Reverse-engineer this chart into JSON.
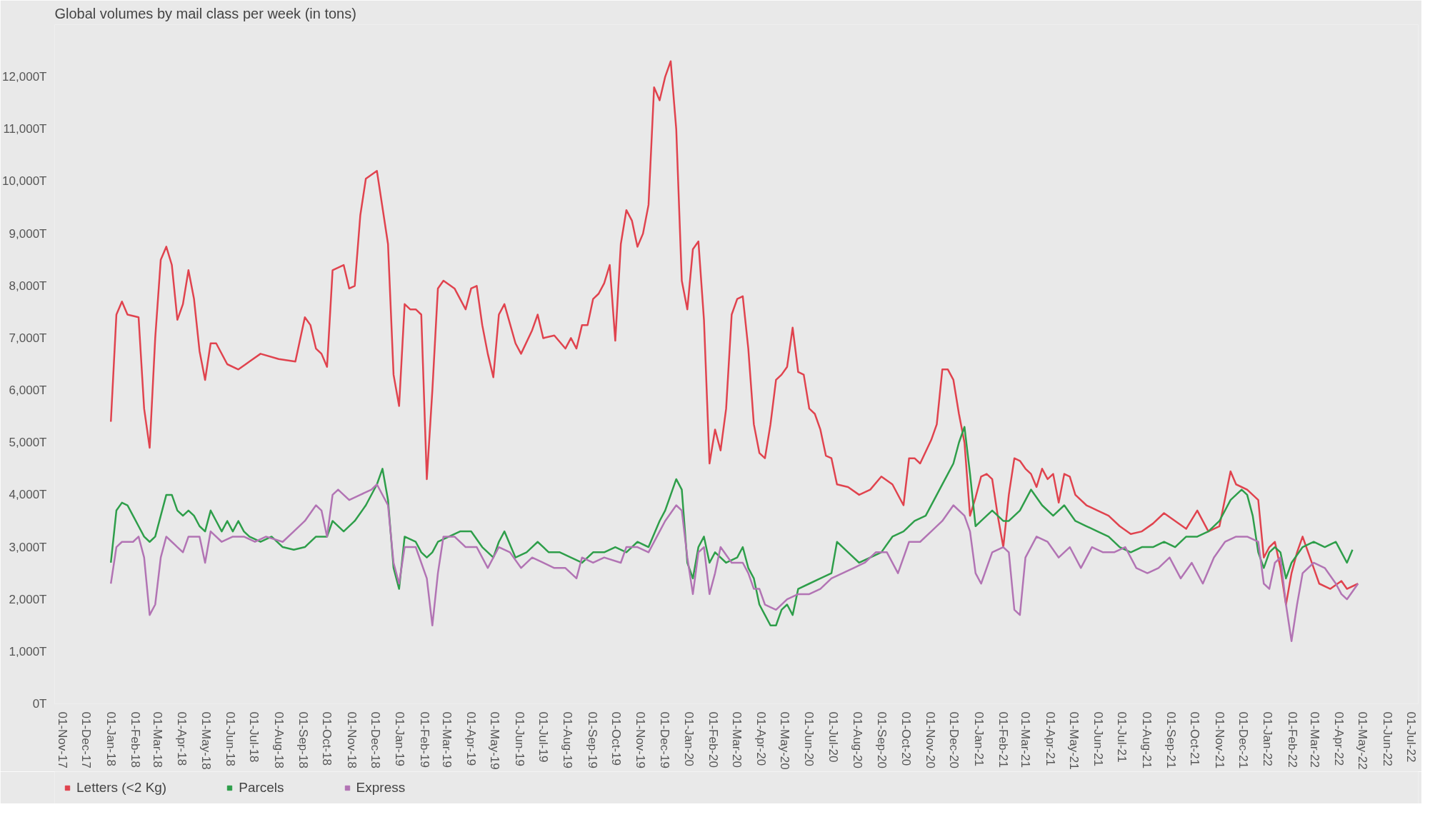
{
  "chart_data": {
    "type": "line",
    "title": "Global volumes by mail class per week (in tons)",
    "xlim": [
      "2017-10-22",
      "2022-07-10"
    ],
    "xticks": [
      {
        "value": "2017-11-01",
        "label": "01-Nov-17"
      },
      {
        "value": "2017-12-01",
        "label": "01-Dec-17"
      },
      {
        "value": "2018-01-01",
        "label": "01-Jan-18"
      },
      {
        "value": "2018-02-01",
        "label": "01-Feb-18"
      },
      {
        "value": "2018-03-01",
        "label": "01-Mar-18"
      },
      {
        "value": "2018-04-01",
        "label": "01-Apr-18"
      },
      {
        "value": "2018-05-01",
        "label": "01-May-18"
      },
      {
        "value": "2018-06-01",
        "label": "01-Jun-18"
      },
      {
        "value": "2018-07-01",
        "label": "01-Jul-18"
      },
      {
        "value": "2018-08-01",
        "label": "01-Aug-18"
      },
      {
        "value": "2018-09-01",
        "label": "01-Sep-18"
      },
      {
        "value": "2018-10-01",
        "label": "01-Oct-18"
      },
      {
        "value": "2018-11-01",
        "label": "01-Nov-18"
      },
      {
        "value": "2018-12-01",
        "label": "01-Dec-18"
      },
      {
        "value": "2019-01-01",
        "label": "01-Jan-19"
      },
      {
        "value": "2019-02-01",
        "label": "01-Feb-19"
      },
      {
        "value": "2019-03-01",
        "label": "01-Mar-19"
      },
      {
        "value": "2019-04-01",
        "label": "01-Apr-19"
      },
      {
        "value": "2019-05-01",
        "label": "01-May-19"
      },
      {
        "value": "2019-06-01",
        "label": "01-Jun-19"
      },
      {
        "value": "2019-07-01",
        "label": "01-Jul-19"
      },
      {
        "value": "2019-08-01",
        "label": "01-Aug-19"
      },
      {
        "value": "2019-09-01",
        "label": "01-Sep-19"
      },
      {
        "value": "2019-10-01",
        "label": "01-Oct-19"
      },
      {
        "value": "2019-11-01",
        "label": "01-Nov-19"
      },
      {
        "value": "2019-12-01",
        "label": "01-Dec-19"
      },
      {
        "value": "2020-01-01",
        "label": "01-Jan-20"
      },
      {
        "value": "2020-02-01",
        "label": "01-Feb-20"
      },
      {
        "value": "2020-03-01",
        "label": "01-Mar-20"
      },
      {
        "value": "2020-04-01",
        "label": "01-Apr-20"
      },
      {
        "value": "2020-05-01",
        "label": "01-May-20"
      },
      {
        "value": "2020-06-01",
        "label": "01-Jun-20"
      },
      {
        "value": "2020-07-01",
        "label": "01-Jul-20"
      },
      {
        "value": "2020-08-01",
        "label": "01-Aug-20"
      },
      {
        "value": "2020-09-01",
        "label": "01-Sep-20"
      },
      {
        "value": "2020-10-01",
        "label": "01-Oct-20"
      },
      {
        "value": "2020-11-01",
        "label": "01-Nov-20"
      },
      {
        "value": "2020-12-01",
        "label": "01-Dec-20"
      },
      {
        "value": "2021-01-01",
        "label": "01-Jan-21"
      },
      {
        "value": "2021-02-01",
        "label": "01-Feb-21"
      },
      {
        "value": "2021-03-01",
        "label": "01-Mar-21"
      },
      {
        "value": "2021-04-01",
        "label": "01-Apr-21"
      },
      {
        "value": "2021-05-01",
        "label": "01-May-21"
      },
      {
        "value": "2021-06-01",
        "label": "01-Jun-21"
      },
      {
        "value": "2021-07-01",
        "label": "01-Jul-21"
      },
      {
        "value": "2021-08-01",
        "label": "01-Aug-21"
      },
      {
        "value": "2021-09-01",
        "label": "01-Sep-21"
      },
      {
        "value": "2021-10-01",
        "label": "01-Oct-21"
      },
      {
        "value": "2021-11-01",
        "label": "01-Nov-21"
      },
      {
        "value": "2021-12-01",
        "label": "01-Dec-21"
      },
      {
        "value": "2022-01-01",
        "label": "01-Jan-22"
      },
      {
        "value": "2022-02-01",
        "label": "01-Feb-22"
      },
      {
        "value": "2022-03-01",
        "label": "01-Mar-22"
      },
      {
        "value": "2022-04-01",
        "label": "01-Apr-22"
      },
      {
        "value": "2022-05-01",
        "label": "01-May-22"
      },
      {
        "value": "2022-06-01",
        "label": "01-Jun-22"
      },
      {
        "value": "2022-07-01",
        "label": "01-Jul-22"
      }
    ],
    "ylim": [
      0,
      13000
    ],
    "yticks": [
      {
        "value": 0,
        "label": "0T"
      },
      {
        "value": 1000,
        "label": "1,000T"
      },
      {
        "value": 2000,
        "label": "2,000T"
      },
      {
        "value": 3000,
        "label": "3,000T"
      },
      {
        "value": 4000,
        "label": "4,000T"
      },
      {
        "value": 5000,
        "label": "5,000T"
      },
      {
        "value": 6000,
        "label": "6,000T"
      },
      {
        "value": 7000,
        "label": "7,000T"
      },
      {
        "value": 8000,
        "label": "8,000T"
      },
      {
        "value": 9000,
        "label": "9,000T"
      },
      {
        "value": 10000,
        "label": "10,000T"
      },
      {
        "value": 11000,
        "label": "11,000T"
      },
      {
        "value": 12000,
        "label": "12,000T"
      }
    ],
    "legend": "bottom",
    "marker": "none",
    "line_style": "solid",
    "series": [
      {
        "name": "Letters (<2 Kg)",
        "color": "#e0434e",
        "x": [
          "2018-01-01",
          "2018-01-08",
          "2018-01-15",
          "2018-01-22",
          "2018-02-05",
          "2018-02-12",
          "2018-02-19",
          "2018-02-26",
          "2018-03-05",
          "2018-03-12",
          "2018-03-19",
          "2018-03-26",
          "2018-04-02",
          "2018-04-09",
          "2018-04-16",
          "2018-04-23",
          "2018-04-30",
          "2018-05-07",
          "2018-05-14",
          "2018-05-28",
          "2018-06-11",
          "2018-06-25",
          "2018-07-09",
          "2018-08-01",
          "2018-08-22",
          "2018-09-03",
          "2018-09-10",
          "2018-09-17",
          "2018-09-24",
          "2018-10-01",
          "2018-10-08",
          "2018-10-22",
          "2018-10-29",
          "2018-11-05",
          "2018-11-12",
          "2018-11-19",
          "2018-12-03",
          "2018-12-17",
          "2018-12-24",
          "2018-12-31",
          "2019-01-07",
          "2019-01-14",
          "2019-01-21",
          "2019-01-28",
          "2019-02-04",
          "2019-02-11",
          "2019-02-18",
          "2019-02-25",
          "2019-03-11",
          "2019-03-25",
          "2019-04-01",
          "2019-04-08",
          "2019-04-15",
          "2019-04-22",
          "2019-04-29",
          "2019-05-06",
          "2019-05-13",
          "2019-05-27",
          "2019-06-03",
          "2019-06-17",
          "2019-06-24",
          "2019-07-01",
          "2019-07-15",
          "2019-07-29",
          "2019-08-05",
          "2019-08-12",
          "2019-08-19",
          "2019-08-26",
          "2019-09-02",
          "2019-09-09",
          "2019-09-16",
          "2019-09-23",
          "2019-09-30",
          "2019-10-07",
          "2019-10-14",
          "2019-10-21",
          "2019-10-28",
          "2019-11-04",
          "2019-11-11",
          "2019-11-18",
          "2019-11-25",
          "2019-12-02",
          "2019-12-09",
          "2019-12-16",
          "2019-12-23",
          "2019-12-30",
          "2020-01-06",
          "2020-01-13",
          "2020-01-20",
          "2020-01-27",
          "2020-02-03",
          "2020-02-10",
          "2020-02-17",
          "2020-02-24",
          "2020-03-02",
          "2020-03-09",
          "2020-03-16",
          "2020-03-23",
          "2020-03-30",
          "2020-04-06",
          "2020-04-13",
          "2020-04-20",
          "2020-04-27",
          "2020-05-04",
          "2020-05-11",
          "2020-05-18",
          "2020-05-25",
          "2020-06-01",
          "2020-06-08",
          "2020-06-15",
          "2020-06-22",
          "2020-06-29",
          "2020-07-06",
          "2020-07-20",
          "2020-08-03",
          "2020-08-17",
          "2020-08-31",
          "2020-09-14",
          "2020-09-28",
          "2020-10-05",
          "2020-10-12",
          "2020-10-19",
          "2020-11-02",
          "2020-11-09",
          "2020-11-16",
          "2020-11-23",
          "2020-11-30",
          "2020-12-07",
          "2020-12-14",
          "2020-12-21",
          "2020-12-28",
          "2021-01-04",
          "2021-01-11",
          "2021-01-18",
          "2021-01-25",
          "2021-02-01",
          "2021-02-08",
          "2021-02-15",
          "2021-02-22",
          "2021-03-01",
          "2021-03-08",
          "2021-03-15",
          "2021-03-22",
          "2021-03-29",
          "2021-04-05",
          "2021-04-12",
          "2021-04-19",
          "2021-04-26",
          "2021-05-03",
          "2021-05-17",
          "2021-05-31",
          "2021-06-14",
          "2021-06-28",
          "2021-07-12",
          "2021-07-26",
          "2021-08-09",
          "2021-08-23",
          "2021-09-06",
          "2021-09-20",
          "2021-10-04",
          "2021-10-18",
          "2021-11-01",
          "2021-11-15",
          "2021-11-22",
          "2021-12-06",
          "2021-12-13",
          "2021-12-20",
          "2021-12-27",
          "2022-01-03",
          "2022-01-10",
          "2022-01-17",
          "2022-01-24",
          "2022-01-31",
          "2022-02-07",
          "2022-02-14",
          "2022-02-28",
          "2022-03-07",
          "2022-03-21",
          "2022-04-04",
          "2022-04-11",
          "2022-04-25"
        ],
        "values": [
          5400,
          7450,
          7700,
          7450,
          7400,
          5650,
          4900,
          7000,
          8500,
          8750,
          8400,
          7350,
          7650,
          8300,
          7750,
          6750,
          6200,
          6900,
          6900,
          6500,
          6400,
          6550,
          6700,
          6600,
          6550,
          7400,
          7250,
          6800,
          6700,
          6450,
          8300,
          8400,
          7950,
          8000,
          9350,
          10050,
          10200,
          8800,
          6300,
          5700,
          7650,
          7550,
          7550,
          7450,
          4300,
          6000,
          7950,
          8100,
          7950,
          7550,
          7950,
          8000,
          7250,
          6700,
          6250,
          7450,
          7650,
          6900,
          6700,
          7150,
          7450,
          7000,
          7050,
          6800,
          7000,
          6800,
          7250,
          7250,
          7750,
          7850,
          8050,
          8400,
          6950,
          8800,
          9450,
          9250,
          8750,
          9000,
          9550,
          11800,
          11550,
          12000,
          12300,
          11000,
          8100,
          7550,
          8700,
          8850,
          7350,
          4600,
          5250,
          4850,
          5650,
          7450,
          7750,
          7800,
          6800,
          5350,
          4800,
          4700,
          5350,
          6200,
          6300,
          6450,
          7200,
          6350,
          6300,
          5650,
          5550,
          5250,
          4750,
          4700,
          4200,
          4150,
          4000,
          4100,
          4350,
          4200,
          3800,
          4700,
          4700,
          4600,
          5050,
          5350,
          6400,
          6400,
          6200,
          5550,
          5000,
          3600,
          3950,
          4350,
          4400,
          4300,
          3600,
          3000,
          4000,
          4700,
          4650,
          4500,
          4400,
          4150,
          4500,
          4300,
          4400,
          3850,
          4400,
          4350,
          4000,
          3800,
          3700,
          3600,
          3400,
          3250,
          3300,
          3450,
          3650,
          3500,
          3350,
          3700,
          3300,
          3400,
          4450,
          4200,
          4100,
          4000,
          3900,
          2800,
          3000,
          3100,
          2600,
          1900,
          2500,
          2900,
          3200,
          2600,
          2300,
          2200,
          2350,
          2200,
          2300
        ]
      },
      {
        "name": "Parcels",
        "color": "#2e9e4a",
        "x": [
          "2018-01-01",
          "2018-01-08",
          "2018-01-15",
          "2018-01-22",
          "2018-01-29",
          "2018-02-05",
          "2018-02-12",
          "2018-02-19",
          "2018-02-26",
          "2018-03-05",
          "2018-03-12",
          "2018-03-19",
          "2018-03-26",
          "2018-04-02",
          "2018-04-09",
          "2018-04-16",
          "2018-04-23",
          "2018-04-30",
          "2018-05-07",
          "2018-05-14",
          "2018-05-21",
          "2018-05-28",
          "2018-06-04",
          "2018-06-11",
          "2018-06-18",
          "2018-06-25",
          "2018-07-09",
          "2018-07-23",
          "2018-08-06",
          "2018-08-20",
          "2018-09-03",
          "2018-09-17",
          "2018-10-01",
          "2018-10-08",
          "2018-10-22",
          "2018-11-05",
          "2018-11-19",
          "2018-12-03",
          "2018-12-10",
          "2018-12-17",
          "2018-12-24",
          "2018-12-31",
          "2019-01-07",
          "2019-01-21",
          "2019-01-28",
          "2019-02-04",
          "2019-02-11",
          "2019-02-18",
          "2019-03-04",
          "2019-03-18",
          "2019-04-01",
          "2019-04-15",
          "2019-04-22",
          "2019-04-29",
          "2019-05-06",
          "2019-05-13",
          "2019-05-27",
          "2019-06-10",
          "2019-06-24",
          "2019-07-08",
          "2019-07-22",
          "2019-08-05",
          "2019-08-19",
          "2019-09-02",
          "2019-09-16",
          "2019-09-30",
          "2019-10-14",
          "2019-10-28",
          "2019-11-11",
          "2019-11-25",
          "2019-12-02",
          "2019-12-09",
          "2019-12-16",
          "2019-12-23",
          "2019-12-30",
          "2020-01-06",
          "2020-01-13",
          "2020-01-20",
          "2020-01-27",
          "2020-02-03",
          "2020-02-17",
          "2020-03-02",
          "2020-03-09",
          "2020-03-16",
          "2020-03-23",
          "2020-03-30",
          "2020-04-06",
          "2020-04-13",
          "2020-04-20",
          "2020-04-27",
          "2020-05-04",
          "2020-05-11",
          "2020-05-18",
          "2020-06-01",
          "2020-06-15",
          "2020-06-29",
          "2020-07-06",
          "2020-07-20",
          "2020-08-03",
          "2020-08-17",
          "2020-08-31",
          "2020-09-14",
          "2020-09-28",
          "2020-10-12",
          "2020-10-26",
          "2020-11-09",
          "2020-11-23",
          "2020-11-30",
          "2020-12-07",
          "2020-12-14",
          "2020-12-21",
          "2020-12-28",
          "2021-01-04",
          "2021-01-18",
          "2021-02-01",
          "2021-02-08",
          "2021-02-22",
          "2021-03-08",
          "2021-03-22",
          "2021-04-05",
          "2021-04-19",
          "2021-05-03",
          "2021-05-17",
          "2021-05-31",
          "2021-06-14",
          "2021-06-28",
          "2021-07-12",
          "2021-07-26",
          "2021-08-09",
          "2021-08-23",
          "2021-09-06",
          "2021-09-20",
          "2021-10-04",
          "2021-10-18",
          "2021-11-01",
          "2021-11-15",
          "2021-11-29",
          "2021-12-06",
          "2021-12-13",
          "2021-12-20",
          "2021-12-27",
          "2022-01-03",
          "2022-01-10",
          "2022-01-17",
          "2022-01-24",
          "2022-01-31",
          "2022-02-14",
          "2022-02-28",
          "2022-03-14",
          "2022-03-28",
          "2022-04-04",
          "2022-04-11",
          "2022-04-18"
        ],
        "values": [
          2700,
          3700,
          3850,
          3800,
          3600,
          3400,
          3200,
          3100,
          3200,
          3600,
          4000,
          4000,
          3700,
          3600,
          3700,
          3600,
          3400,
          3300,
          3700,
          3500,
          3300,
          3500,
          3300,
          3500,
          3300,
          3200,
          3100,
          3200,
          3000,
          2950,
          3000,
          3200,
          3200,
          3500,
          3300,
          3500,
          3800,
          4200,
          4500,
          3900,
          2600,
          2200,
          3200,
          3100,
          2900,
          2800,
          2900,
          3100,
          3200,
          3300,
          3300,
          3000,
          2900,
          2800,
          3100,
          3300,
          2800,
          2900,
          3100,
          2900,
          2900,
          2800,
          2700,
          2900,
          2900,
          3000,
          2900,
          3100,
          3000,
          3500,
          3700,
          4000,
          4300,
          4100,
          2700,
          2400,
          3000,
          3200,
          2700,
          2900,
          2700,
          2800,
          3000,
          2600,
          2400,
          1900,
          1700,
          1500,
          1500,
          1800,
          1900,
          1700,
          2200,
          2300,
          2400,
          2500,
          3100,
          2900,
          2700,
          2800,
          2900,
          3200,
          3300,
          3500,
          3600,
          4000,
          4400,
          4600,
          5000,
          5300,
          4400,
          3400,
          3500,
          3700,
          3500,
          3500,
          3700,
          4100,
          3800,
          3600,
          3800,
          3500,
          3400,
          3300,
          3200,
          3000,
          2900,
          3000,
          3000,
          3100,
          3000,
          3200,
          3200,
          3300,
          3500,
          3900,
          4100,
          4000,
          3600,
          2900,
          2600,
          2900,
          3000,
          2900,
          2400,
          2700,
          3000,
          3100,
          3000,
          3100,
          2900,
          2700,
          2950
        ]
      },
      {
        "name": "Express",
        "color": "#b274b4",
        "x": [
          "2018-01-01",
          "2018-01-08",
          "2018-01-15",
          "2018-01-29",
          "2018-02-05",
          "2018-02-12",
          "2018-02-19",
          "2018-02-26",
          "2018-03-05",
          "2018-03-12",
          "2018-03-19",
          "2018-03-26",
          "2018-04-02",
          "2018-04-09",
          "2018-04-23",
          "2018-04-30",
          "2018-05-07",
          "2018-05-21",
          "2018-06-04",
          "2018-06-18",
          "2018-07-02",
          "2018-07-16",
          "2018-08-06",
          "2018-08-20",
          "2018-09-03",
          "2018-09-17",
          "2018-09-24",
          "2018-10-01",
          "2018-10-08",
          "2018-10-15",
          "2018-10-29",
          "2018-11-12",
          "2018-11-26",
          "2018-12-03",
          "2018-12-17",
          "2018-12-24",
          "2018-12-31",
          "2019-01-07",
          "2019-01-21",
          "2019-01-28",
          "2019-02-04",
          "2019-02-11",
          "2019-02-18",
          "2019-02-25",
          "2019-03-11",
          "2019-03-25",
          "2019-04-08",
          "2019-04-22",
          "2019-05-06",
          "2019-05-20",
          "2019-06-03",
          "2019-06-17",
          "2019-07-01",
          "2019-07-15",
          "2019-07-29",
          "2019-08-12",
          "2019-08-19",
          "2019-09-02",
          "2019-09-16",
          "2019-10-07",
          "2019-10-14",
          "2019-10-28",
          "2019-11-11",
          "2019-11-25",
          "2019-12-02",
          "2019-12-16",
          "2019-12-23",
          "2019-12-30",
          "2020-01-06",
          "2020-01-13",
          "2020-01-20",
          "2020-01-27",
          "2020-02-03",
          "2020-02-10",
          "2020-02-24",
          "2020-03-09",
          "2020-03-16",
          "2020-03-23",
          "2020-03-30",
          "2020-04-06",
          "2020-04-20",
          "2020-05-04",
          "2020-05-18",
          "2020-06-01",
          "2020-06-15",
          "2020-06-29",
          "2020-07-13",
          "2020-07-27",
          "2020-08-10",
          "2020-08-24",
          "2020-09-07",
          "2020-09-21",
          "2020-10-05",
          "2020-10-19",
          "2020-11-02",
          "2020-11-16",
          "2020-11-30",
          "2020-12-14",
          "2020-12-21",
          "2020-12-28",
          "2021-01-04",
          "2021-01-18",
          "2021-02-01",
          "2021-02-08",
          "2021-02-15",
          "2021-02-22",
          "2021-03-01",
          "2021-03-15",
          "2021-03-29",
          "2021-04-12",
          "2021-04-26",
          "2021-05-10",
          "2021-05-24",
          "2021-06-07",
          "2021-06-21",
          "2021-07-05",
          "2021-07-19",
          "2021-08-02",
          "2021-08-16",
          "2021-08-30",
          "2021-09-13",
          "2021-09-27",
          "2021-10-11",
          "2021-10-25",
          "2021-11-08",
          "2021-11-22",
          "2021-12-06",
          "2021-12-20",
          "2021-12-27",
          "2022-01-03",
          "2022-01-10",
          "2022-01-17",
          "2022-01-24",
          "2022-01-31",
          "2022-02-07",
          "2022-02-14",
          "2022-02-28",
          "2022-03-14",
          "2022-03-28",
          "2022-04-04",
          "2022-04-11",
          "2022-04-25"
        ],
        "values": [
          2300,
          3000,
          3100,
          3100,
          3200,
          2800,
          1700,
          1900,
          2800,
          3200,
          3100,
          3000,
          2900,
          3200,
          3200,
          2700,
          3300,
          3100,
          3200,
          3200,
          3100,
          3200,
          3100,
          3300,
          3500,
          3800,
          3700,
          3200,
          4000,
          4100,
          3900,
          4000,
          4100,
          4200,
          3800,
          2700,
          2300,
          3000,
          3000,
          2700,
          2400,
          1500,
          2500,
          3200,
          3200,
          3000,
          3000,
          2600,
          3000,
          2900,
          2600,
          2800,
          2700,
          2600,
          2600,
          2400,
          2800,
          2700,
          2800,
          2700,
          3000,
          3000,
          2900,
          3300,
          3500,
          3800,
          3700,
          2800,
          2100,
          2900,
          3000,
          2100,
          2500,
          3000,
          2700,
          2700,
          2500,
          2200,
          2200,
          1900,
          1800,
          2000,
          2100,
          2100,
          2200,
          2400,
          2500,
          2600,
          2700,
          2900,
          2900,
          2500,
          3100,
          3100,
          3300,
          3500,
          3800,
          3600,
          3300,
          2500,
          2300,
          2900,
          3000,
          2900,
          1800,
          1700,
          2800,
          3200,
          3100,
          2800,
          3000,
          2600,
          3000,
          2900,
          2900,
          3000,
          2600,
          2500,
          2600,
          2800,
          2400,
          2700,
          2300,
          2800,
          3100,
          3200,
          3200,
          3100,
          2300,
          2200,
          2700,
          2800,
          1900,
          1200,
          1900,
          2500,
          2700,
          2600,
          2300,
          2100,
          2000,
          2300
        ]
      }
    ]
  }
}
